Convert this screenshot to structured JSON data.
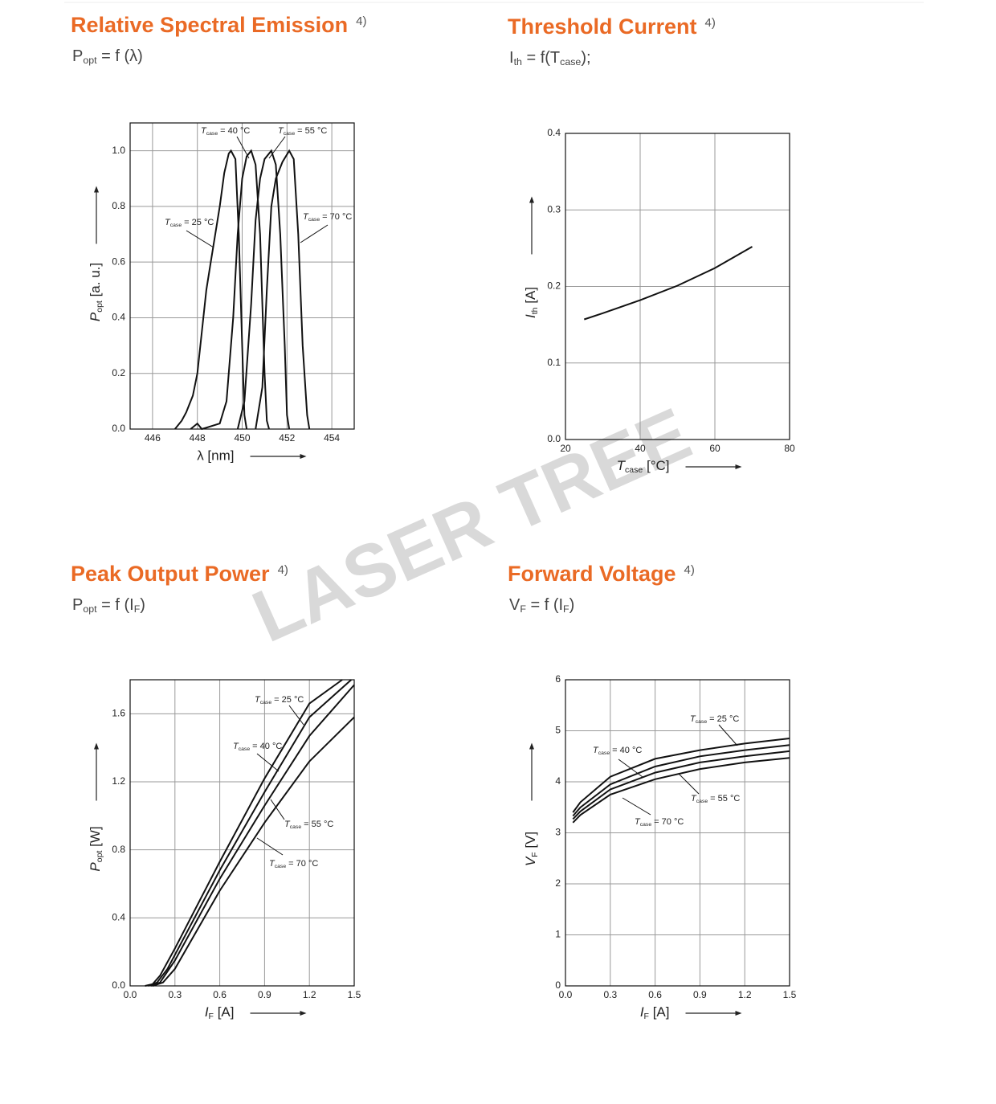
{
  "watermark": "LASER TREE",
  "chart_data": [
    {
      "type": "line",
      "title": "Relative Spectral Emission",
      "title_note": "4)",
      "subtitle": [
        "P",
        "opt",
        " = f (λ)"
      ],
      "x_label": "λ [nm]",
      "y_label": [
        "P",
        "opt",
        " [a. u.]"
      ],
      "xlim": [
        445,
        455
      ],
      "ylim": [
        0,
        1.1
      ],
      "xticks": [
        446,
        448,
        450,
        452,
        454
      ],
      "yticks": [
        {
          "value": 0,
          "label": "0.0"
        },
        0.2,
        0.4,
        0.6,
        0.8,
        {
          "value": 1,
          "label": "1.0"
        }
      ],
      "grid": true,
      "series": [
        {
          "label": [
            "T",
            "case",
            " = 25 °C"
          ],
          "color": "#111111",
          "x": [
            447.0,
            447.3,
            447.5,
            447.8,
            448.0,
            448.2,
            448.4,
            448.6,
            448.8,
            449.0,
            449.2,
            449.4,
            449.5,
            449.7,
            449.85,
            450.0,
            450.1,
            450.2
          ],
          "values": [
            0,
            0.03,
            0.06,
            0.12,
            0.2,
            0.35,
            0.5,
            0.6,
            0.7,
            0.8,
            0.92,
            0.99,
            1.0,
            0.97,
            0.7,
            0.3,
            0.05,
            0
          ]
        },
        {
          "label": [
            "T",
            "case",
            " = 40 °C"
          ],
          "color": "#111111",
          "x": [
            447.7,
            448.0,
            448.2,
            449.0,
            449.3,
            449.6,
            449.8,
            450.0,
            450.2,
            450.4,
            450.6,
            450.8,
            451.0,
            451.1,
            451.2
          ],
          "values": [
            0,
            0.02,
            0,
            0.02,
            0.1,
            0.4,
            0.7,
            0.9,
            0.98,
            1.0,
            0.95,
            0.7,
            0.2,
            0.03,
            0
          ]
        },
        {
          "label": [
            "T",
            "case",
            " = 55 °C"
          ],
          "color": "#111111",
          "x": [
            449.8,
            450.1,
            450.4,
            450.6,
            450.8,
            451.0,
            451.3,
            451.5,
            451.7,
            451.9,
            452.0,
            452.1
          ],
          "values": [
            0,
            0.1,
            0.45,
            0.75,
            0.9,
            0.97,
            1.0,
            0.95,
            0.7,
            0.3,
            0.05,
            0
          ]
        },
        {
          "label": [
            "T",
            "case",
            " = 70 °C"
          ],
          "color": "#111111",
          "x": [
            450.6,
            450.9,
            451.1,
            451.3,
            451.5,
            451.8,
            452.1,
            452.3,
            452.5,
            452.7,
            452.9,
            453.0
          ],
          "values": [
            0,
            0.15,
            0.5,
            0.8,
            0.9,
            0.96,
            1.0,
            0.97,
            0.7,
            0.3,
            0.05,
            0
          ]
        }
      ]
    },
    {
      "type": "line",
      "title": "Threshold Current",
      "title_note": "4)",
      "subtitle": [
        "I",
        "th",
        " = f(T",
        "case",
        ");"
      ],
      "x_label": [
        "T",
        "case",
        " [°C]"
      ],
      "y_label": [
        "I",
        "th",
        " [A]"
      ],
      "xlim": [
        20,
        80
      ],
      "ylim": [
        0,
        0.4
      ],
      "xticks": [
        20,
        40,
        60,
        80
      ],
      "yticks": [
        {
          "value": 0,
          "label": "0.0"
        },
        0.1,
        0.2,
        0.3,
        0.4
      ],
      "grid": true,
      "series": [
        {
          "color": "#111111",
          "x": [
            25,
            30,
            40,
            50,
            60,
            70
          ],
          "values": [
            0.157,
            0.165,
            0.182,
            0.201,
            0.224,
            0.252
          ]
        }
      ]
    },
    {
      "type": "line",
      "title": "Peak Output Power",
      "title_note": "4)",
      "subtitle": [
        "P",
        "opt",
        " = f (I",
        "F",
        ")"
      ],
      "x_label": [
        "I",
        "F",
        " [A]"
      ],
      "y_label": [
        "P",
        "opt",
        " [W]"
      ],
      "xlim": [
        0,
        1.5
      ],
      "ylim": [
        0,
        1.8
      ],
      "xticks": [
        {
          "value": 0,
          "label": "0.0"
        },
        0.3,
        0.6,
        0.9,
        1.2,
        1.5
      ],
      "yticks": [
        {
          "value": 0,
          "label": "0.0"
        },
        0.4,
        0.8,
        1.2,
        1.6
      ],
      "grid": true,
      "series": [
        {
          "label": [
            "T",
            "case",
            " = 25 °C"
          ],
          "color": "#111111",
          "x": [
            0.1,
            0.15,
            0.2,
            0.3,
            0.6,
            0.9,
            1.2,
            1.42
          ],
          "values": [
            0,
            0.01,
            0.06,
            0.22,
            0.73,
            1.22,
            1.66,
            1.8
          ]
        },
        {
          "label": [
            "T",
            "case",
            " = 40 °C"
          ],
          "color": "#111111",
          "x": [
            0.12,
            0.18,
            0.25,
            0.6,
            0.9,
            1.2,
            1.48
          ],
          "values": [
            0,
            0.02,
            0.1,
            0.68,
            1.14,
            1.58,
            1.8
          ]
        },
        {
          "label": [
            "T",
            "case",
            " = 55 °C"
          ],
          "color": "#111111",
          "x": [
            0.14,
            0.2,
            0.3,
            0.6,
            0.9,
            1.2,
            1.5
          ],
          "values": [
            0,
            0.02,
            0.15,
            0.63,
            1.06,
            1.47,
            1.77
          ]
        },
        {
          "label": [
            "T",
            "case",
            " = 70 °C"
          ],
          "color": "#111111",
          "x": [
            0.15,
            0.22,
            0.3,
            0.6,
            0.9,
            1.2,
            1.5
          ],
          "values": [
            0,
            0.02,
            0.1,
            0.56,
            0.96,
            1.32,
            1.58
          ]
        }
      ]
    },
    {
      "type": "line",
      "title": "Forward Voltage",
      "title_note": "4)",
      "subtitle": [
        "V",
        "F",
        " = f (I",
        "F",
        ")"
      ],
      "x_label": [
        "I",
        "F",
        " [A]"
      ],
      "y_label": [
        "V",
        "F",
        " [V]"
      ],
      "xlim": [
        0,
        1.5
      ],
      "ylim": [
        0,
        6
      ],
      "xticks": [
        {
          "value": 0,
          "label": "0.0"
        },
        0.3,
        0.6,
        0.9,
        1.2,
        1.5
      ],
      "yticks": [
        0,
        1,
        2,
        3,
        4,
        5,
        6
      ],
      "grid": true,
      "series": [
        {
          "label": [
            "T",
            "case",
            " = 25 °C"
          ],
          "color": "#111111",
          "x": [
            0.05,
            0.1,
            0.3,
            0.6,
            0.9,
            1.2,
            1.5
          ],
          "values": [
            3.4,
            3.6,
            4.1,
            4.45,
            4.62,
            4.75,
            4.85
          ]
        },
        {
          "label": [
            "T",
            "case",
            " = 40 °C"
          ],
          "color": "#111111",
          "x": [
            0.05,
            0.1,
            0.3,
            0.6,
            0.9,
            1.2,
            1.5
          ],
          "values": [
            3.33,
            3.5,
            3.95,
            4.3,
            4.5,
            4.62,
            4.72
          ]
        },
        {
          "label": [
            "T",
            "case",
            " = 55 °C"
          ],
          "color": "#111111",
          "x": [
            0.05,
            0.1,
            0.3,
            0.6,
            0.9,
            1.2,
            1.5
          ],
          "values": [
            3.27,
            3.42,
            3.85,
            4.18,
            4.38,
            4.5,
            4.6
          ]
        },
        {
          "label": [
            "T",
            "case",
            " = 70 °C"
          ],
          "color": "#111111",
          "x": [
            0.05,
            0.1,
            0.3,
            0.6,
            0.9,
            1.2,
            1.5
          ],
          "values": [
            3.2,
            3.35,
            3.75,
            4.05,
            4.25,
            4.38,
            4.47
          ]
        }
      ]
    }
  ]
}
